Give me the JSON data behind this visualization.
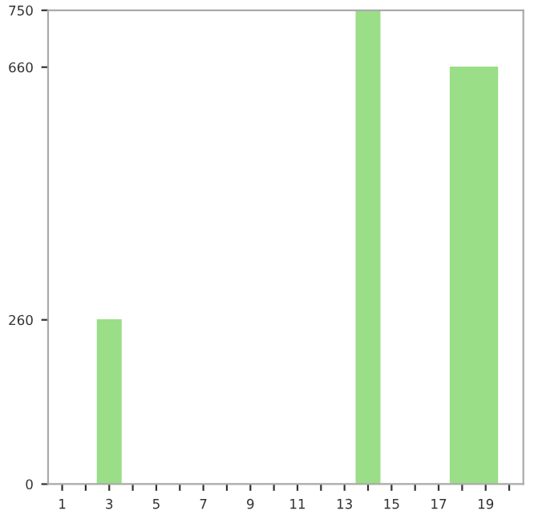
{
  "chart_data": {
    "type": "bar",
    "categories": [
      "1",
      null,
      "3",
      null,
      "5",
      null,
      "7",
      null,
      "9",
      null,
      "11",
      null,
      "13",
      null,
      "15",
      null,
      "17",
      null,
      "19",
      null
    ],
    "values": [
      0,
      0,
      260,
      0,
      0,
      0,
      0,
      0,
      0,
      0,
      0,
      0,
      0,
      750,
      0,
      0,
      0,
      660,
      660,
      0
    ],
    "color": "#9ade88",
    "ylim": [
      0,
      750
    ],
    "yticks": [
      0,
      260,
      660,
      750
    ],
    "grid": false
  }
}
